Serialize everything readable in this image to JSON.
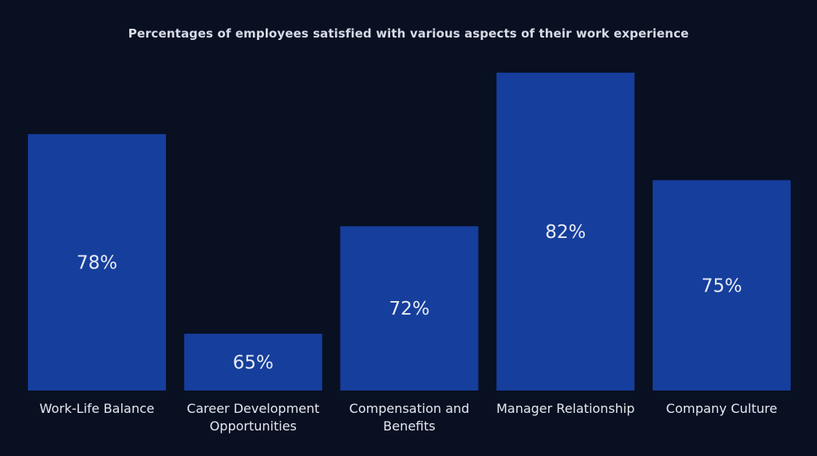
{
  "chart_data": {
    "type": "bar",
    "title": "Percentages of employees satisfied with various aspects of their work experience",
    "categories": [
      [
        "Work-Life Balance"
      ],
      [
        "Career Development",
        "Opportunities"
      ],
      [
        "Compensation and",
        "Benefits"
      ],
      [
        "Manager Relationship"
      ],
      [
        "Company Culture"
      ]
    ],
    "values": [
      78,
      65,
      72,
      82,
      75
    ],
    "value_labels": [
      "78%",
      "65%",
      "72%",
      "82%",
      "75%"
    ],
    "unit": "%",
    "ylim": [
      61.3,
      82
    ],
    "grid": false,
    "legend": "none",
    "colors": {
      "background": "#091022",
      "bar": "#163e9c",
      "text": "#e4e8f0"
    }
  }
}
